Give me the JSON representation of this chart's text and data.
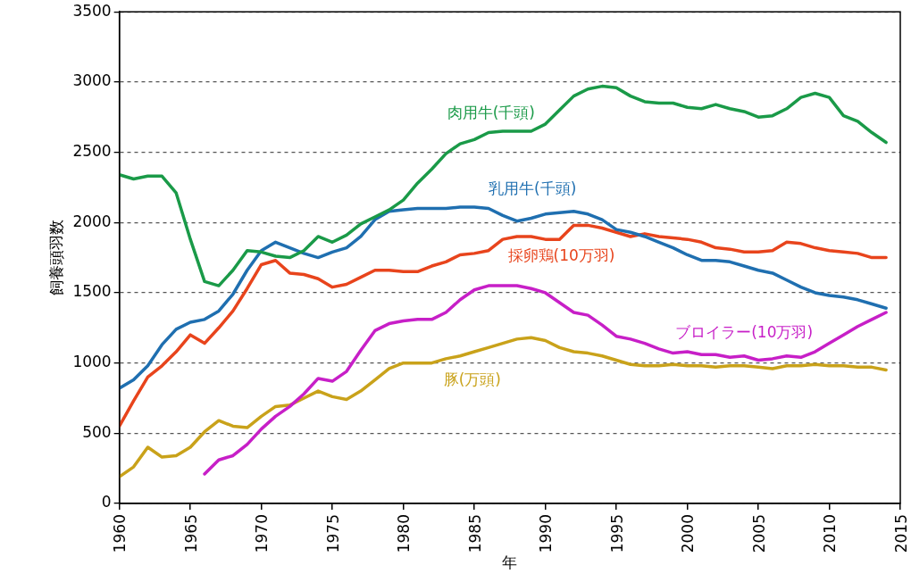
{
  "chart_data": {
    "type": "line",
    "xlabel": "年",
    "ylabel": "飼養頭羽数",
    "xlim": [
      1960,
      2015
    ],
    "xticks": [
      1960,
      1965,
      1970,
      1975,
      1980,
      1985,
      1990,
      1995,
      2000,
      2005,
      2010,
      2015
    ],
    "ylim": [
      0,
      3500
    ],
    "yticks": [
      0,
      500,
      1000,
      1500,
      2000,
      2500,
      3000,
      3500
    ],
    "grid": "y",
    "legend": false,
    "marker": "none",
    "line_style": "solid",
    "x": [
      1960,
      1961,
      1962,
      1963,
      1964,
      1965,
      1966,
      1967,
      1968,
      1969,
      1970,
      1971,
      1972,
      1973,
      1974,
      1975,
      1976,
      1977,
      1978,
      1979,
      1980,
      1981,
      1982,
      1983,
      1984,
      1985,
      1986,
      1987,
      1988,
      1989,
      1990,
      1991,
      1992,
      1993,
      1994,
      1995,
      1996,
      1997,
      1998,
      1999,
      2000,
      2001,
      2002,
      2003,
      2004,
      2005,
      2006,
      2007,
      2008,
      2009,
      2010,
      2011,
      2012,
      2013,
      2014
    ],
    "series": [
      {
        "name": "肉用牛(千頭)",
        "color": "#1a9a48",
        "values": [
          2340,
          2310,
          2330,
          2330,
          2210,
          1880,
          1580,
          1550,
          1660,
          1800,
          1790,
          1760,
          1750,
          1800,
          1900,
          1860,
          1910,
          1990,
          2040,
          2090,
          2160,
          2280,
          2380,
          2490,
          2560,
          2590,
          2640,
          2650,
          2650,
          2650,
          2700,
          2800,
          2900,
          2950,
          2970,
          2960,
          2900,
          2860,
          2850,
          2850,
          2820,
          2810,
          2840,
          2810,
          2790,
          2750,
          2760,
          2810,
          2890,
          2920,
          2890,
          2760,
          2720,
          2640,
          2570
        ]
      },
      {
        "name": "乳用牛(千頭)",
        "color": "#1f6fb0",
        "values": [
          820,
          880,
          980,
          1130,
          1240,
          1290,
          1310,
          1370,
          1490,
          1660,
          1800,
          1860,
          1820,
          1780,
          1750,
          1790,
          1820,
          1900,
          2020,
          2080,
          2090,
          2100,
          2100,
          2100,
          2110,
          2110,
          2100,
          2050,
          2010,
          2030,
          2060,
          2070,
          2080,
          2060,
          2020,
          1950,
          1930,
          1900,
          1860,
          1820,
          1770,
          1730,
          1730,
          1720,
          1690,
          1660,
          1640,
          1590,
          1540,
          1500,
          1480,
          1470,
          1450,
          1420,
          1390
        ]
      },
      {
        "name": "採卵鶏(10万羽)",
        "color": "#e8441c",
        "values": [
          550,
          730,
          900,
          980,
          1080,
          1200,
          1140,
          1250,
          1370,
          1530,
          1700,
          1730,
          1640,
          1630,
          1600,
          1540,
          1560,
          1610,
          1660,
          1660,
          1650,
          1650,
          1690,
          1720,
          1770,
          1780,
          1800,
          1880,
          1900,
          1900,
          1880,
          1880,
          1980,
          1980,
          1960,
          1930,
          1900,
          1920,
          1900,
          1890,
          1880,
          1860,
          1820,
          1810,
          1790,
          1790,
          1800,
          1860,
          1850,
          1820,
          1800,
          1790,
          1780,
          1750,
          1750
        ]
      },
      {
        "name": "ブロイラー(10万羽)",
        "color": "#c71fc7",
        "values": [
          null,
          null,
          null,
          null,
          null,
          null,
          210,
          310,
          340,
          420,
          530,
          620,
          690,
          780,
          890,
          870,
          940,
          1090,
          1230,
          1280,
          1300,
          1310,
          1310,
          1360,
          1450,
          1520,
          1550,
          1550,
          1550,
          1530,
          1500,
          1430,
          1360,
          1340,
          1270,
          1190,
          1170,
          1140,
          1100,
          1070,
          1080,
          1060,
          1060,
          1040,
          1050,
          1020,
          1030,
          1050,
          1040,
          1080,
          1140,
          1200,
          1260,
          1310,
          1360
        ]
      },
      {
        "name": "豚(万頭)",
        "color": "#c9a21a",
        "values": [
          190,
          260,
          400,
          330,
          340,
          400,
          510,
          590,
          550,
          540,
          620,
          690,
          700,
          750,
          800,
          760,
          740,
          800,
          880,
          960,
          1000,
          1000,
          1000,
          1030,
          1050,
          1080,
          1110,
          1140,
          1170,
          1180,
          1160,
          1110,
          1080,
          1070,
          1050,
          1020,
          990,
          980,
          980,
          990,
          980,
          980,
          970,
          980,
          980,
          970,
          960,
          980,
          980,
          990,
          980,
          980,
          970,
          970,
          950
        ]
      }
    ]
  }
}
